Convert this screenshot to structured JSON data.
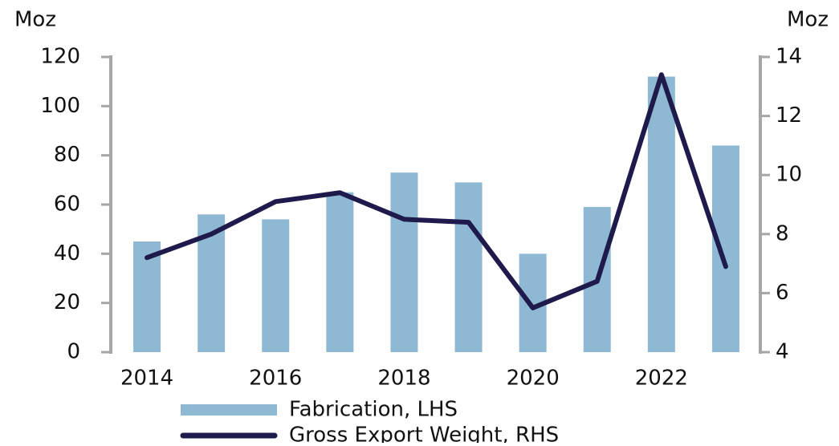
{
  "chart_data": {
    "type": "bar_line",
    "ylabel": "Moz",
    "y2label": "Moz",
    "x": [
      2014,
      2015,
      2016,
      2017,
      2018,
      2019,
      2020,
      2021,
      2022,
      2023
    ],
    "xlim": [
      2013.5,
      2023.5
    ],
    "xticks": [
      2014,
      2016,
      2018,
      2020,
      2022
    ],
    "ylim": [
      0,
      120
    ],
    "yticks": [
      0,
      20,
      40,
      60,
      80,
      100,
      120
    ],
    "y2lim": [
      4,
      14
    ],
    "y2ticks": [
      4,
      6,
      8,
      10,
      12,
      14
    ],
    "legend": "bottom",
    "series": [
      {
        "name": "Fabrication, LHS",
        "type": "bar",
        "color": "#8fb9d2",
        "values": [
          45,
          56,
          54,
          65,
          73,
          69,
          40,
          59,
          112,
          84
        ]
      },
      {
        "name": "Gross Export Weight, RHS",
        "type": "line",
        "axis": "y2",
        "color": "#1e1b4c",
        "values": [
          7.2,
          8.0,
          9.1,
          9.4,
          8.5,
          8.4,
          5.5,
          6.4,
          13.4,
          6.9
        ]
      }
    ]
  }
}
